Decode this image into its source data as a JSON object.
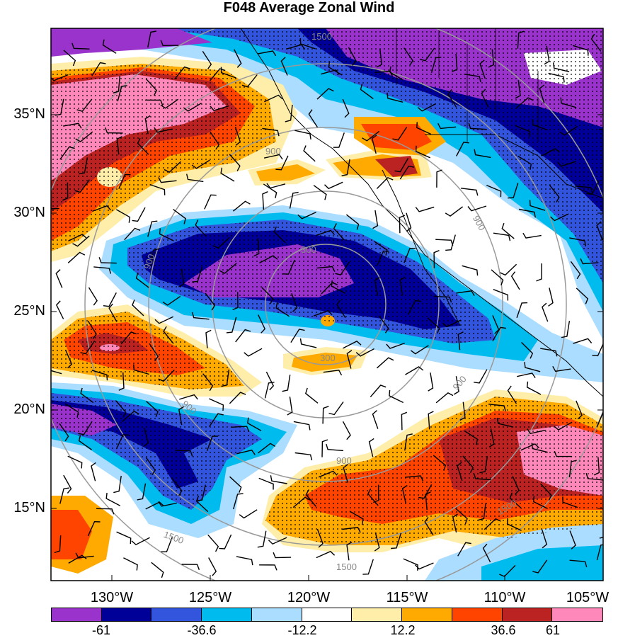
{
  "title": "F048 Average Zonal Wind",
  "lat_labels": [
    "35°N",
    "30°N",
    "25°N",
    "20°N",
    "15°N"
  ],
  "lon_labels": [
    "130°W",
    "125°W",
    "120°W",
    "115°W",
    "110°W",
    "105°W"
  ],
  "colorbar": {
    "colors": [
      "#9933cc",
      "#000099",
      "#3355dd",
      "#00bbee",
      "#aaddff",
      "#ffffff",
      "#ffeeaa",
      "#ffaa00",
      "#ff4400",
      "#bb2222",
      "#ff88bb"
    ],
    "labels": [
      "-61",
      "-36.6",
      "-12.2",
      "12.2",
      "36.6",
      "61"
    ]
  },
  "contour_labels": [
    "1500",
    "900",
    "900",
    "300",
    "300",
    "900",
    "900",
    "900",
    "900",
    "1500",
    "1500",
    "1500"
  ]
}
